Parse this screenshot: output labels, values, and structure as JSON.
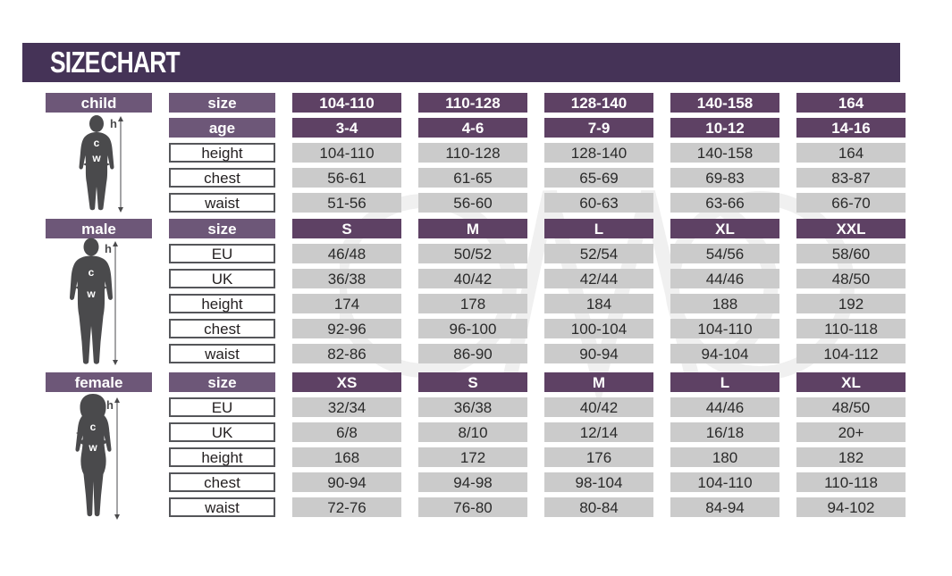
{
  "title": "SIZE CHART",
  "figure_labels": {
    "height_arrow": "h",
    "chest_arrow": "c",
    "waist_arrow": "w"
  },
  "colors": {
    "title_bar": "#453357",
    "header_purple": "#6d5778",
    "size_value_purple": "#5e4164",
    "value_cell_grey": "#cbcbcb",
    "label_cell_border": "#55565a",
    "silhouette_grey": "#4a4a4c"
  },
  "sections": [
    {
      "name": "child",
      "rows": [
        {
          "label": "size",
          "style": "header",
          "values": [
            "104-110",
            "110-128",
            "128-140",
            "140-158",
            "164"
          ]
        },
        {
          "label": "age",
          "style": "header",
          "values": [
            "3-4",
            "4-6",
            "7-9",
            "10-12",
            "14-16"
          ]
        },
        {
          "label": "height",
          "style": "data",
          "values": [
            "104-110",
            "110-128",
            "128-140",
            "140-158",
            "164"
          ]
        },
        {
          "label": "chest",
          "style": "data",
          "values": [
            "56-61",
            "61-65",
            "65-69",
            "69-83",
            "83-87"
          ]
        },
        {
          "label": "waist",
          "style": "data",
          "values": [
            "51-56",
            "56-60",
            "60-63",
            "63-66",
            "66-70"
          ]
        }
      ]
    },
    {
      "name": "male",
      "rows": [
        {
          "label": "size",
          "style": "header",
          "values": [
            "S",
            "M",
            "L",
            "XL",
            "XXL"
          ]
        },
        {
          "label": "EU",
          "style": "data",
          "values": [
            "46/48",
            "50/52",
            "52/54",
            "54/56",
            "58/60"
          ]
        },
        {
          "label": "UK",
          "style": "data",
          "values": [
            "36/38",
            "40/42",
            "42/44",
            "44/46",
            "48/50"
          ]
        },
        {
          "label": "height",
          "style": "data",
          "values": [
            "174",
            "178",
            "184",
            "188",
            "192"
          ]
        },
        {
          "label": "chest",
          "style": "data",
          "values": [
            "92-96",
            "96-100",
            "100-104",
            "104-110",
            "110-118"
          ]
        },
        {
          "label": "waist",
          "style": "data",
          "values": [
            "82-86",
            "86-90",
            "90-94",
            "94-104",
            "104-112"
          ]
        }
      ]
    },
    {
      "name": "female",
      "rows": [
        {
          "label": "size",
          "style": "header",
          "values": [
            "XS",
            "S",
            "M",
            "L",
            "XL"
          ]
        },
        {
          "label": "EU",
          "style": "data",
          "values": [
            "32/34",
            "36/38",
            "40/42",
            "44/46",
            "48/50"
          ]
        },
        {
          "label": "UK",
          "style": "data",
          "values": [
            "6/8",
            "8/10",
            "12/14",
            "16/18",
            "20+"
          ]
        },
        {
          "label": "height",
          "style": "data",
          "values": [
            "168",
            "172",
            "176",
            "180",
            "182"
          ]
        },
        {
          "label": "chest",
          "style": "data",
          "values": [
            "90-94",
            "94-98",
            "98-104",
            "104-110",
            "110-118"
          ]
        },
        {
          "label": "waist",
          "style": "data",
          "values": [
            "72-76",
            "76-80",
            "80-84",
            "84-94",
            "94-102"
          ]
        }
      ]
    }
  ],
  "chart_data": [
    {
      "type": "table",
      "title": "child",
      "columns": [
        "size",
        "104-110",
        "110-128",
        "128-140",
        "140-158",
        "164"
      ],
      "rows": [
        [
          "age",
          "3-4",
          "4-6",
          "7-9",
          "10-12",
          "14-16"
        ],
        [
          "height",
          "104-110",
          "110-128",
          "128-140",
          "140-158",
          "164"
        ],
        [
          "chest",
          "56-61",
          "61-65",
          "65-69",
          "69-83",
          "83-87"
        ],
        [
          "waist",
          "51-56",
          "56-60",
          "60-63",
          "63-66",
          "66-70"
        ]
      ]
    },
    {
      "type": "table",
      "title": "male",
      "columns": [
        "size",
        "S",
        "M",
        "L",
        "XL",
        "XXL"
      ],
      "rows": [
        [
          "EU",
          "46/48",
          "50/52",
          "52/54",
          "54/56",
          "58/60"
        ],
        [
          "UK",
          "36/38",
          "40/42",
          "42/44",
          "44/46",
          "48/50"
        ],
        [
          "height",
          "174",
          "178",
          "184",
          "188",
          "192"
        ],
        [
          "chest",
          "92-96",
          "96-100",
          "100-104",
          "104-110",
          "110-118"
        ],
        [
          "waist",
          "82-86",
          "86-90",
          "90-94",
          "94-104",
          "104-112"
        ]
      ]
    },
    {
      "type": "table",
      "title": "female",
      "columns": [
        "size",
        "XS",
        "S",
        "M",
        "L",
        "XL"
      ],
      "rows": [
        [
          "EU",
          "32/34",
          "36/38",
          "40/42",
          "44/46",
          "48/50"
        ],
        [
          "UK",
          "6/8",
          "8/10",
          "12/14",
          "16/18",
          "20+"
        ],
        [
          "height",
          "168",
          "172",
          "176",
          "180",
          "182"
        ],
        [
          "chest",
          "90-94",
          "94-98",
          "98-104",
          "104-110",
          "110-118"
        ],
        [
          "waist",
          "72-76",
          "76-80",
          "80-84",
          "84-94",
          "94-102"
        ]
      ]
    }
  ]
}
